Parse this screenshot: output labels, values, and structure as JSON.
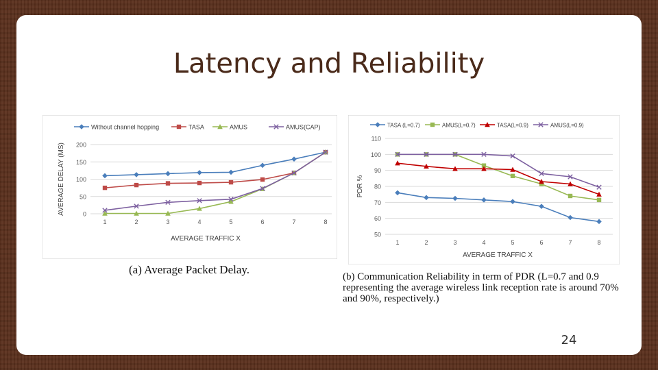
{
  "slide": {
    "title": "Latency and Reliability",
    "page_number": "24"
  },
  "colors": {
    "blue": "#4a7ebb",
    "red": "#be4b48",
    "green": "#98b954",
    "purple": "#7d60a0",
    "frame": "#5a2f1c"
  },
  "captions": {
    "a": "(a)  Average  Packet  Delay.",
    "b": "(b)  Communication  Reliability  in  term  of  PDR  (L=0.7  and  0.9 representing  the  average  wireless  link  reception  rate  is  around 70%  and  90%,  respectively.)"
  },
  "chart_data": [
    {
      "type": "line",
      "title": "",
      "xlabel": "AVERAGE TRAFFIC X",
      "ylabel": "AVERAGE DELAY (MS)",
      "x": [
        1,
        2,
        3,
        4,
        5,
        6,
        7,
        8
      ],
      "xticks": [
        "1",
        "2",
        "3",
        "4",
        "5",
        "6",
        "7",
        "8"
      ],
      "yticks": [
        "0",
        "50",
        "100",
        "150",
        "200"
      ],
      "ylim": [
        0,
        200
      ],
      "grid": true,
      "legend_position": "top",
      "series": [
        {
          "name": "Without channel hopping",
          "color": "#4a7ebb",
          "marker": "diamond",
          "values": [
            110,
            113,
            116,
            119,
            120,
            140,
            158,
            178
          ]
        },
        {
          "name": "TASA",
          "color": "#be4b48",
          "marker": "square",
          "values": [
            75,
            83,
            88,
            89,
            91,
            99,
            118,
            178
          ]
        },
        {
          "name": "AMUS",
          "color": "#98b954",
          "marker": "triangle",
          "values": [
            1,
            1,
            1,
            15,
            35,
            72,
            118,
            178
          ]
        },
        {
          "name": "AMUS(CAP)",
          "color": "#7d60a0",
          "marker": "x",
          "values": [
            10,
            22,
            33,
            38,
            42,
            73,
            118,
            178
          ]
        }
      ]
    },
    {
      "type": "line",
      "title": "",
      "xlabel": "AVERAGE TRAFFIC X",
      "ylabel": "PDR %",
      "x": [
        1,
        2,
        3,
        4,
        5,
        6,
        7,
        8
      ],
      "xticks": [
        "1",
        "2",
        "3",
        "4",
        "5",
        "6",
        "7",
        "8"
      ],
      "yticks": [
        "50",
        "60",
        "70",
        "80",
        "90",
        "100",
        "110"
      ],
      "ylim": [
        50,
        110
      ],
      "grid": true,
      "legend_position": "top",
      "series": [
        {
          "name": "TASA (L=0.7)",
          "color": "#4a7ebb",
          "marker": "diamond",
          "values": [
            76,
            73,
            72.5,
            71.5,
            70.5,
            67.5,
            60.5,
            58
          ]
        },
        {
          "name": "AMUS(L=0.7)",
          "color": "#98b954",
          "marker": "square",
          "values": [
            100,
            100,
            100,
            93,
            86.5,
            81.5,
            74,
            71.5
          ]
        },
        {
          "name": "TASA(L=0.9)",
          "color": "#c00000",
          "marker": "triangle",
          "values": [
            94.5,
            92.5,
            91,
            91,
            90.5,
            83,
            81.5,
            75
          ]
        },
        {
          "name": "AMUS(L=0.9)",
          "color": "#7d60a0",
          "marker": "x",
          "values": [
            100,
            100,
            100,
            100,
            99,
            88,
            86,
            79.5
          ]
        }
      ]
    }
  ]
}
